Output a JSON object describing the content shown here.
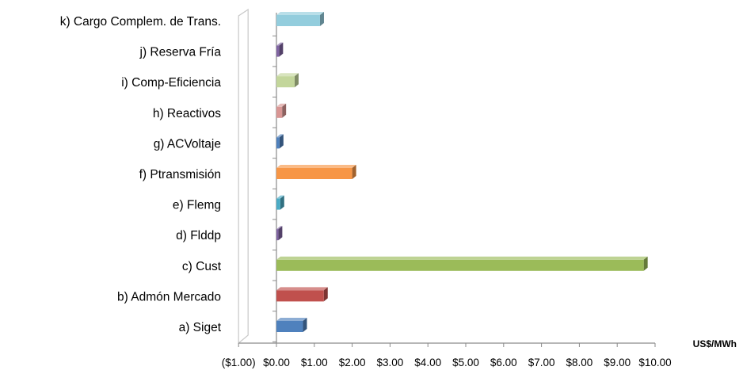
{
  "chart_data": {
    "type": "bar",
    "orientation": "horizontal",
    "style": "3d",
    "categories": [
      "a) Siget",
      "b) Admón Mercado",
      "c) Cust",
      "d) Flddp",
      "e) Flemg",
      "f) Ptransmisión",
      "g) ACVoltaje",
      "h) Reactivos",
      "i) Comp-Eficiencia",
      "j) Reserva Fría",
      "k) Cargo Complem. de Trans."
    ],
    "values": [
      0.7,
      1.25,
      9.7,
      0.05,
      0.1,
      2.0,
      0.08,
      0.15,
      0.48,
      0.07,
      1.15
    ],
    "colors": [
      "#4F81BD",
      "#C0504D",
      "#9BBB59",
      "#8064A2",
      "#4BACC6",
      "#F79646",
      "#4F81BD",
      "#D99694",
      "#C3D69B",
      "#8064A2",
      "#93CDDD"
    ],
    "xlim": [
      -1,
      10
    ],
    "xticks": [
      -1,
      0,
      1,
      2,
      3,
      4,
      5,
      6,
      7,
      8,
      9,
      10
    ],
    "xtick_labels": [
      "($1.00)",
      "$0.00",
      "$1.00",
      "$2.00",
      "$3.00",
      "$4.00",
      "$5.00",
      "$6.00",
      "$7.00",
      "$8.00",
      "$9.00",
      "$10.00"
    ],
    "xlabel": "US$/MWh",
    "title": "",
    "grid": false,
    "legend": "none"
  }
}
